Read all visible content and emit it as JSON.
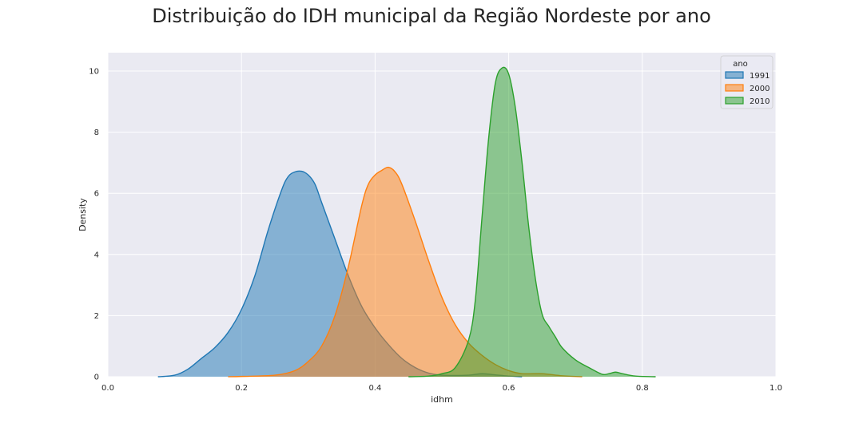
{
  "chart_data": {
    "type": "area",
    "title": "Distribuição do IDH municipal da Região Nordeste por ano",
    "xlabel": "idhm",
    "ylabel": "Density",
    "xlim": [
      0,
      1
    ],
    "ylim": [
      0,
      10.6
    ],
    "xticks": [
      "0.0",
      "0.2",
      "0.4",
      "0.6",
      "0.8",
      "1.0"
    ],
    "yticks": [
      "0",
      "2",
      "4",
      "6",
      "8",
      "10"
    ],
    "grid": true,
    "legend": {
      "title": "ano",
      "placement": "top-right"
    },
    "series": [
      {
        "name": "1991",
        "color": "#1f77b4",
        "x": [
          0.075,
          0.1,
          0.12,
          0.14,
          0.16,
          0.18,
          0.2,
          0.22,
          0.24,
          0.26,
          0.27,
          0.28,
          0.29,
          0.3,
          0.31,
          0.32,
          0.34,
          0.36,
          0.38,
          0.4,
          0.42,
          0.44,
          0.46,
          0.48,
          0.5,
          0.52,
          0.54,
          0.56,
          0.58,
          0.6,
          0.62
        ],
        "y": [
          0.0,
          0.05,
          0.25,
          0.6,
          0.95,
          1.45,
          2.2,
          3.3,
          4.8,
          6.1,
          6.55,
          6.7,
          6.72,
          6.6,
          6.3,
          5.7,
          4.5,
          3.3,
          2.3,
          1.6,
          1.05,
          0.6,
          0.3,
          0.12,
          0.05,
          0.04,
          0.05,
          0.1,
          0.06,
          0.02,
          0.0
        ]
      },
      {
        "name": "2000",
        "color": "#ff7f0e",
        "x": [
          0.18,
          0.2,
          0.25,
          0.28,
          0.3,
          0.32,
          0.34,
          0.36,
          0.38,
          0.39,
          0.4,
          0.41,
          0.42,
          0.43,
          0.44,
          0.46,
          0.48,
          0.5,
          0.52,
          0.54,
          0.56,
          0.58,
          0.6,
          0.62,
          0.65,
          0.68,
          0.71
        ],
        "y": [
          0.0,
          0.01,
          0.05,
          0.2,
          0.5,
          1.0,
          2.0,
          3.6,
          5.6,
          6.3,
          6.6,
          6.75,
          6.85,
          6.7,
          6.3,
          5.1,
          3.8,
          2.6,
          1.7,
          1.1,
          0.7,
          0.4,
          0.2,
          0.1,
          0.1,
          0.03,
          0.0
        ]
      },
      {
        "name": "2010",
        "color": "#2ca02c",
        "x": [
          0.45,
          0.48,
          0.5,
          0.52,
          0.54,
          0.55,
          0.56,
          0.57,
          0.58,
          0.59,
          0.6,
          0.61,
          0.62,
          0.63,
          0.64,
          0.65,
          0.66,
          0.67,
          0.68,
          0.7,
          0.72,
          0.74,
          0.75,
          0.76,
          0.77,
          0.79,
          0.82
        ],
        "y": [
          0.0,
          0.02,
          0.1,
          0.3,
          1.2,
          2.5,
          5.2,
          7.8,
          9.6,
          10.1,
          9.9,
          8.8,
          7.0,
          4.9,
          3.2,
          2.05,
          1.65,
          1.3,
          0.95,
          0.55,
          0.3,
          0.08,
          0.1,
          0.15,
          0.1,
          0.02,
          0.0
        ]
      }
    ]
  }
}
